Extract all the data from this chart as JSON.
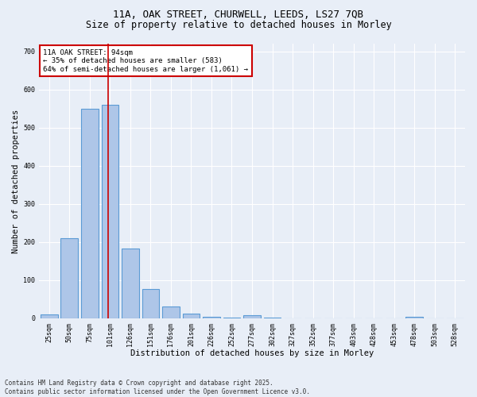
{
  "title_line1": "11A, OAK STREET, CHURWELL, LEEDS, LS27 7QB",
  "title_line2": "Size of property relative to detached houses in Morley",
  "xlabel": "Distribution of detached houses by size in Morley",
  "ylabel": "Number of detached properties",
  "bins": [
    "25sqm",
    "50sqm",
    "75sqm",
    "101sqm",
    "126sqm",
    "151sqm",
    "176sqm",
    "201sqm",
    "226sqm",
    "252sqm",
    "277sqm",
    "302sqm",
    "327sqm",
    "352sqm",
    "377sqm",
    "403sqm",
    "428sqm",
    "453sqm",
    "478sqm",
    "503sqm",
    "528sqm"
  ],
  "values": [
    10,
    210,
    550,
    560,
    183,
    77,
    31,
    12,
    5,
    1,
    9,
    2,
    0,
    0,
    0,
    0,
    0,
    0,
    5,
    0,
    0
  ],
  "bar_color": "#aec6e8",
  "bar_edge_color": "#5b9bd5",
  "vline_color": "#cc0000",
  "vline_pos": 2.925,
  "annotation_text": "11A OAK STREET: 94sqm\n← 35% of detached houses are smaller (583)\n64% of semi-detached houses are larger (1,061) →",
  "annotation_box_color": "#ffffff",
  "annotation_edge_color": "#cc0000",
  "ylim": [
    0,
    720
  ],
  "yticks": [
    0,
    100,
    200,
    300,
    400,
    500,
    600,
    700
  ],
  "background_color": "#e8eef7",
  "plot_bg_color": "#e8eef7",
  "footer": "Contains HM Land Registry data © Crown copyright and database right 2025.\nContains public sector information licensed under the Open Government Licence v3.0.",
  "title_fontsize": 9,
  "subtitle_fontsize": 8.5,
  "tick_fontsize": 6,
  "label_fontsize": 7.5,
  "annotation_fontsize": 6.5,
  "footer_fontsize": 5.5
}
